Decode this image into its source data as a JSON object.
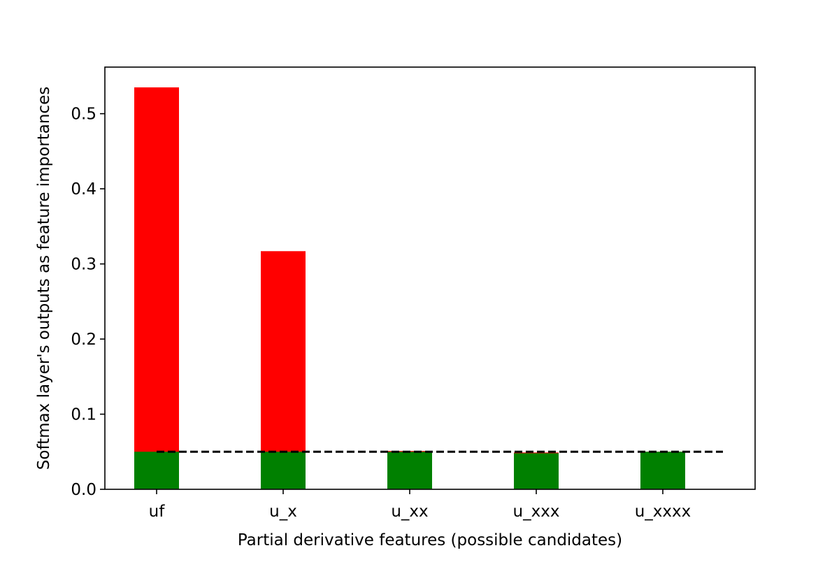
{
  "chart_data": {
    "type": "bar",
    "categories": [
      "uf",
      "u_x",
      "u_xx",
      "u_xxx",
      "u_xxxx"
    ],
    "series": [
      {
        "values": [
          0.535,
          0.317,
          0.051,
          0.049,
          0.05
        ],
        "color": "#ff0000"
      },
      {
        "values": [
          0.05,
          0.05,
          0.05,
          0.048,
          0.05
        ],
        "color": "#008000"
      }
    ],
    "threshold": {
      "value": 0.05,
      "style": "dashed",
      "color": "#000000"
    },
    "title": "",
    "xlabel": "Partial derivative features (possible candidates)",
    "ylabel": "Softmax layer's outputs as feature importances",
    "ylim": [
      0,
      0.562
    ],
    "yticks": [
      "0.0",
      "0.1",
      "0.2",
      "0.3",
      "0.4",
      "0.5"
    ],
    "grid": false,
    "legend": "none"
  }
}
